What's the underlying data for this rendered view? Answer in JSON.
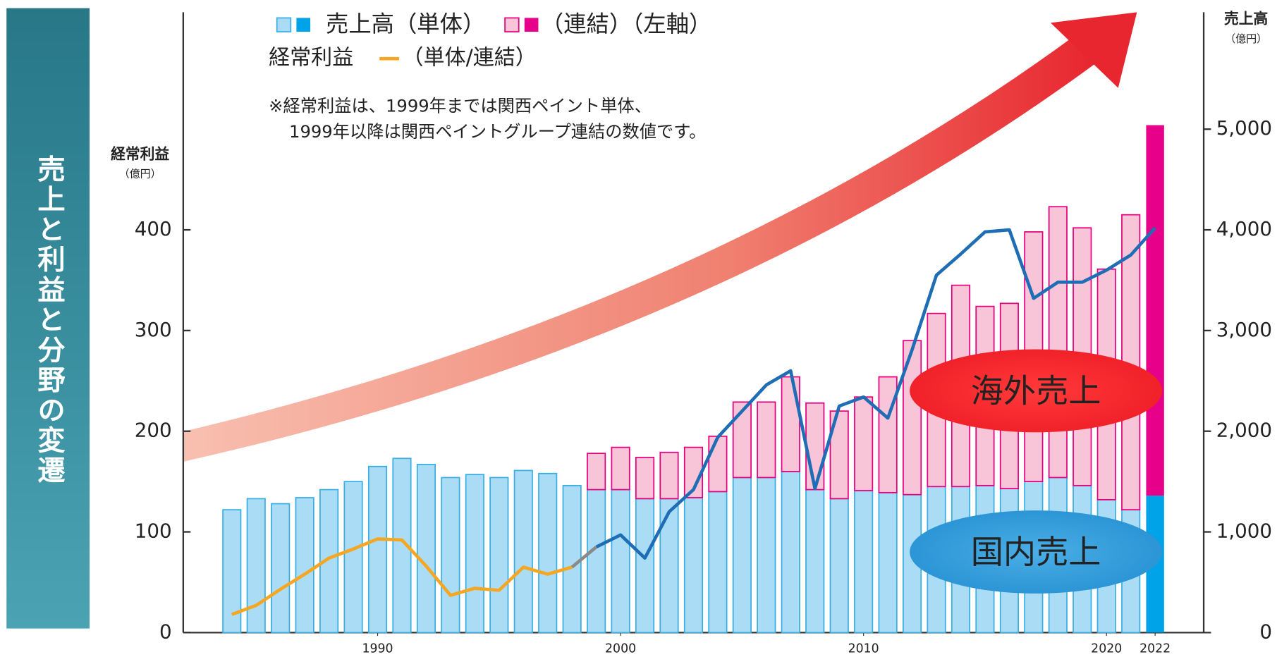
{
  "chart_data": {
    "type": "combo",
    "side_title": "売上と利益と分野の変遷",
    "legend": {
      "sales_label": "売上高（単体）",
      "consolidated_label": "（連結）（左軸）",
      "profit_label": "経常利益",
      "profit_note": "（単体/連結）"
    },
    "note_lines": [
      "※経常利益は、1999年までは関西ペイント単体、",
      "1999年以降は関西ペイントグループ連結の数値です。"
    ],
    "y_label": "経常利益",
    "y_unit": "（億円）",
    "y2_label": "売上高",
    "y2_unit": "（億円）",
    "regions": [
      "海外売上",
      "国内売上"
    ],
    "x": [
      1984,
      1985,
      1986,
      1987,
      1988,
      1989,
      1990,
      1991,
      1992,
      1993,
      1994,
      1995,
      1996,
      1997,
      1998,
      1999,
      2000,
      2001,
      2002,
      2003,
      2004,
      2005,
      2006,
      2007,
      2008,
      2009,
      2010,
      2011,
      2012,
      2013,
      2014,
      2015,
      2016,
      2017,
      2018,
      2019,
      2020,
      2021,
      2022
    ],
    "xlim": [
      1982,
      2024
    ],
    "xticks": [
      1990,
      2000,
      2010,
      2020,
      2022
    ],
    "ylim": [
      0,
      600
    ],
    "yticks": [
      0,
      100,
      200,
      300,
      400
    ],
    "y2lim": [
      0,
      6000
    ],
    "y2ticks": [
      0,
      {
        "value": 1000,
        "label": "1,000"
      },
      {
        "value": 2000,
        "label": "2,000"
      },
      {
        "value": 3000,
        "label": "3,000"
      },
      {
        "value": 4000,
        "label": "4,000"
      },
      {
        "value": 5000,
        "label": "5,000"
      }
    ],
    "highlight_x": 2022,
    "series": [
      {
        "name": "売上高（単体）",
        "axis": "y2",
        "color": "#aadcf5",
        "edge_color": "#39aee2",
        "solid_color": "#00a3e8",
        "values": [
          1220,
          1330,
          1280,
          1340,
          1420,
          1500,
          1650,
          1730,
          1670,
          1540,
          1570,
          1540,
          1610,
          1580,
          1460,
          1420,
          1420,
          1330,
          1330,
          1340,
          1400,
          1540,
          1540,
          1600,
          1420,
          1330,
          1410,
          1390,
          1370,
          1450,
          1450,
          1460,
          1430,
          1500,
          1540,
          1460,
          1320,
          1220,
          1360
        ]
      },
      {
        "name": "（連結）",
        "axis": "y2",
        "color": "#f8c4d8",
        "edge_color": "#e4007f",
        "solid_color": "#e6008a",
        "values": [
          null,
          null,
          null,
          null,
          null,
          null,
          null,
          null,
          null,
          null,
          null,
          null,
          null,
          null,
          null,
          360,
          420,
          410,
          460,
          500,
          550,
          750,
          750,
          940,
          860,
          870,
          930,
          1150,
          1530,
          1720,
          2000,
          1780,
          1840,
          2480,
          2690,
          2560,
          2290,
          2930,
          3680
        ]
      }
    ],
    "profit": {
      "connector_color": "#8a8a8a",
      "lines": [
        {
          "color": "#f5a623",
          "values": [
            18,
            27,
            43,
            58,
            74,
            83,
            93,
            92,
            66,
            37,
            44,
            42,
            65,
            58,
            65,
            null,
            null,
            null,
            null,
            null,
            null,
            null,
            null,
            null,
            null,
            null,
            null,
            null,
            null,
            null,
            null,
            null,
            null,
            null,
            null,
            null,
            null,
            null,
            null
          ]
        },
        {
          "color": "#1f6db5",
          "values": [
            null,
            null,
            null,
            null,
            null,
            null,
            null,
            null,
            null,
            null,
            null,
            null,
            null,
            null,
            null,
            85,
            97,
            74,
            120,
            142,
            194,
            220,
            246,
            260,
            143,
            225,
            234,
            213,
            281,
            355,
            376,
            398,
            400,
            332,
            348,
            348,
            360,
            375,
            402
          ]
        }
      ]
    }
  }
}
